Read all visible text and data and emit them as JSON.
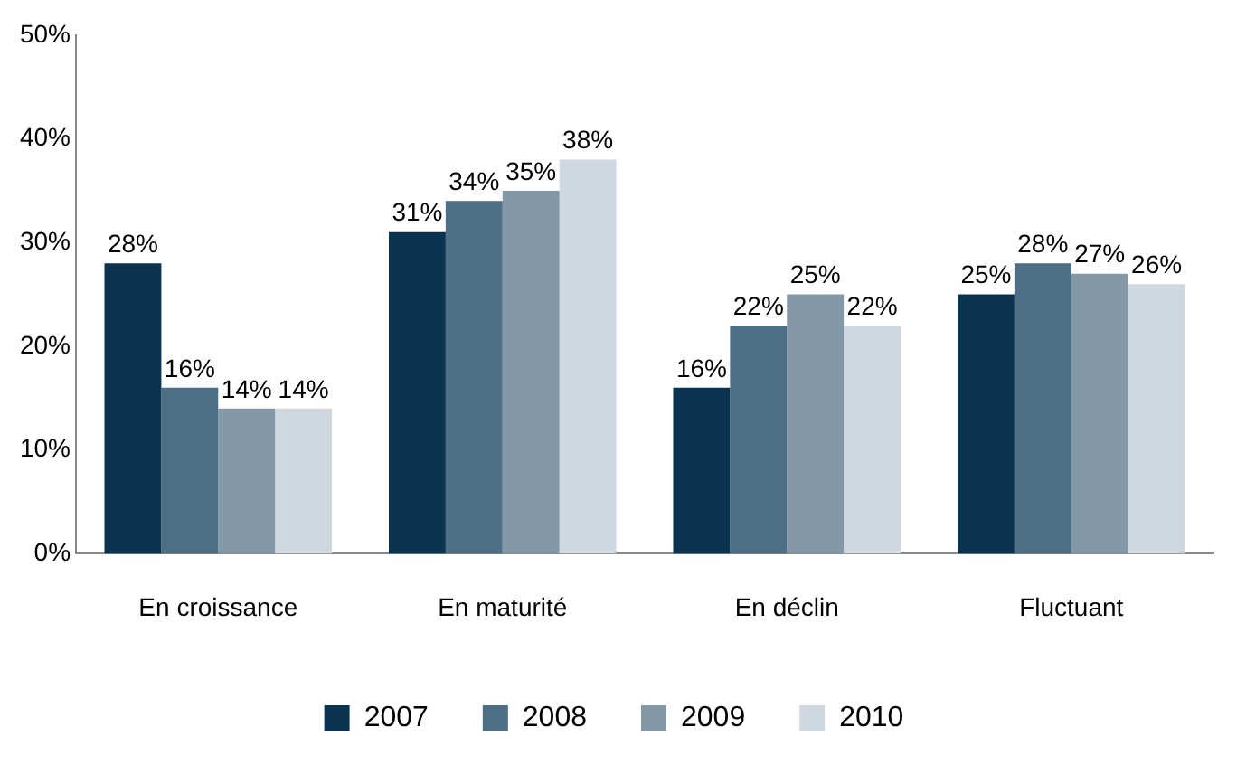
{
  "chart_data": {
    "type": "bar",
    "categories": [
      "En croissance",
      "En maturité",
      "En déclin",
      "Fluctuant"
    ],
    "series": [
      {
        "name": "2007",
        "color": "#0a3350",
        "values": [
          28,
          31,
          16,
          25
        ],
        "value_labels": [
          "28%",
          "31%",
          "16%",
          "25%"
        ]
      },
      {
        "name": "2008",
        "color": "#4d6e85",
        "values": [
          16,
          34,
          22,
          28
        ],
        "value_labels": [
          "16%",
          "34%",
          "22%",
          "28%"
        ]
      },
      {
        "name": "2009",
        "color": "#8399a8",
        "values": [
          14,
          35,
          25,
          27
        ],
        "value_labels": [
          "14%",
          "35%",
          "25%",
          "27%"
        ]
      },
      {
        "name": "2010",
        "color": "#d0d8df",
        "values": [
          14,
          38,
          22,
          26
        ],
        "value_labels": [
          "14%",
          "38%",
          "22%",
          "26%"
        ]
      }
    ],
    "ylim": [
      0,
      50
    ],
    "yticks": [
      {
        "value": 0,
        "label": "0%"
      },
      {
        "value": 10,
        "label": "10%"
      },
      {
        "value": 20,
        "label": "20%"
      },
      {
        "value": 30,
        "label": "30%"
      },
      {
        "value": 40,
        "label": "40%"
      },
      {
        "value": 50,
        "label": "50%"
      }
    ],
    "grid": false,
    "legend": "bottom"
  }
}
